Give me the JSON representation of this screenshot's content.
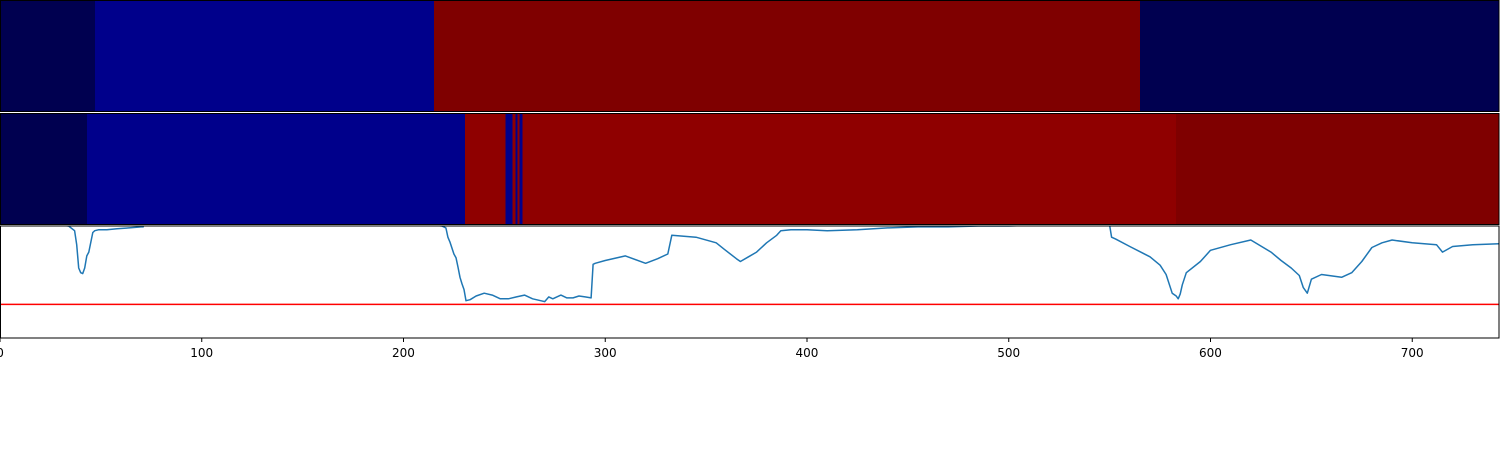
{
  "chart_data": [
    {
      "type": "heatmap",
      "colors": {
        "navy": "#000050",
        "blue": "#00008B",
        "dark_red": "#7F0000"
      },
      "segments": [
        {
          "start": 0,
          "end": 47,
          "color": "navy"
        },
        {
          "start": 47,
          "end": 215,
          "color": "blue"
        },
        {
          "start": 215,
          "end": 565,
          "color": "dark_red"
        },
        {
          "start": 565,
          "end": 743,
          "color": "navy"
        }
      ]
    },
    {
      "type": "heatmap",
      "colors": {
        "navy": "#000050",
        "blue": "#00008B",
        "red": "#8F0000",
        "dark_red": "#7F0000"
      },
      "segments": [
        {
          "start": 0,
          "end": 43,
          "color": "navy"
        },
        {
          "start": 43,
          "end": 230.5,
          "color": "blue"
        },
        {
          "start": 230.5,
          "end": 250.5,
          "color": "red"
        },
        {
          "start": 250.5,
          "end": 254,
          "color": "blue"
        },
        {
          "start": 254,
          "end": 255.5,
          "color": "red"
        },
        {
          "start": 255.5,
          "end": 256.5,
          "color": "blue"
        },
        {
          "start": 256.5,
          "end": 257.5,
          "color": "red"
        },
        {
          "start": 257.5,
          "end": 259,
          "color": "blue"
        },
        {
          "start": 259,
          "end": 263,
          "color": "red"
        },
        {
          "start": 263,
          "end": 583,
          "color": "red"
        },
        {
          "start": 583,
          "end": 743,
          "color": "dark_red"
        }
      ]
    },
    {
      "type": "line",
      "xlim": [
        0,
        743
      ],
      "ylim": [
        -0.2,
        1.0
      ],
      "x_ticks": [
        0,
        100,
        200,
        300,
        400,
        500,
        600,
        700
      ],
      "line_color": "#1f77b4",
      "threshold": {
        "value": 0.16,
        "color": "#ff0000"
      },
      "series": [
        {
          "x": [
            0,
            30,
            34,
            37,
            38,
            39,
            40,
            41,
            42,
            43,
            44,
            46,
            47,
            49,
            53,
            58,
            64,
            70,
            71,
            71,
            80,
            100,
            130,
            160,
            190,
            200,
            210,
            215,
            219,
            221,
            222,
            223,
            225,
            226,
            227,
            228,
            229,
            230,
            231,
            233,
            236,
            240,
            244,
            248,
            252,
            256,
            260,
            264,
            268,
            270,
            272,
            274,
            278,
            281,
            284,
            287,
            290,
            293,
            294,
            295,
            300,
            310,
            320,
            326,
            331,
            333,
            345,
            355,
            359,
            365,
            367,
            371,
            375,
            380,
            385,
            387,
            392,
            400,
            410,
            425,
            440,
            455,
            470,
            485,
            500,
            515,
            530,
            545,
            550,
            551,
            553,
            560,
            570,
            575,
            578,
            581,
            583,
            584,
            585,
            586,
            588,
            595,
            600,
            610,
            620,
            630,
            635,
            640,
            644,
            646,
            648,
            650,
            655,
            665,
            670,
            675,
            680,
            685,
            690,
            700,
            712,
            715,
            720,
            730,
            743
          ],
          "y": [
            1.01,
            1.01,
            1.0,
            0.95,
            0.8,
            0.55,
            0.5,
            0.49,
            0.55,
            0.68,
            0.72,
            0.93,
            0.95,
            0.96,
            0.96,
            0.97,
            0.98,
            0.99,
            0.99,
            1.01,
            1.01,
            1.01,
            1.01,
            1.01,
            1.01,
            1.01,
            1.01,
            1.01,
            1.0,
            0.98,
            0.88,
            0.83,
            0.7,
            0.66,
            0.56,
            0.45,
            0.38,
            0.32,
            0.2,
            0.21,
            0.25,
            0.28,
            0.26,
            0.22,
            0.22,
            0.24,
            0.26,
            0.22,
            0.2,
            0.19,
            0.24,
            0.22,
            0.26,
            0.23,
            0.23,
            0.25,
            0.24,
            0.23,
            0.59,
            0.6,
            0.63,
            0.68,
            0.6,
            0.65,
            0.7,
            0.9,
            0.88,
            0.82,
            0.75,
            0.65,
            0.62,
            0.67,
            0.72,
            0.82,
            0.9,
            0.95,
            0.96,
            0.96,
            0.95,
            0.96,
            0.98,
            0.99,
            0.99,
            1.0,
            1.0,
            1.01,
            1.01,
            1.01,
            1.01,
            0.88,
            0.86,
            0.78,
            0.67,
            0.58,
            0.48,
            0.28,
            0.25,
            0.22,
            0.27,
            0.37,
            0.5,
            0.62,
            0.74,
            0.8,
            0.85,
            0.72,
            0.63,
            0.55,
            0.47,
            0.34,
            0.28,
            0.43,
            0.48,
            0.45,
            0.5,
            0.62,
            0.77,
            0.82,
            0.85,
            0.82,
            0.8,
            0.72,
            0.78,
            0.8,
            0.81
          ]
        }
      ]
    }
  ]
}
